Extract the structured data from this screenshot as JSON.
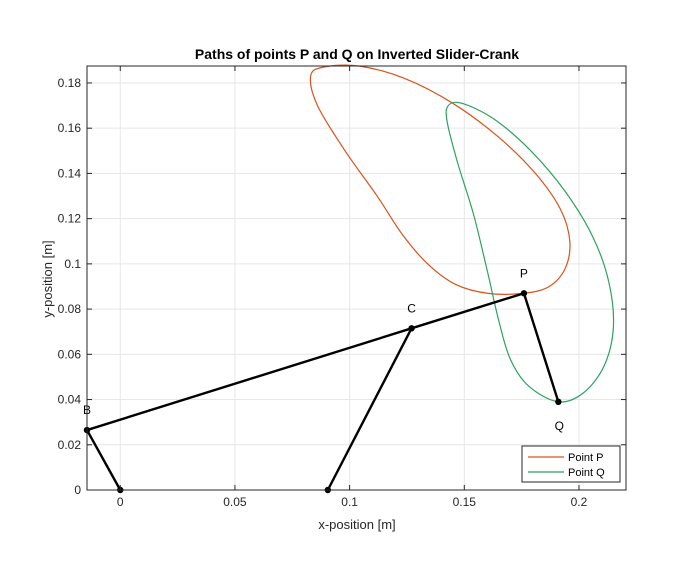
{
  "chart_data": {
    "type": "line",
    "title": "Paths of points P and Q on Inverted Slider-Crank",
    "xlabel": "x-position [m]",
    "ylabel": "y-position [m]",
    "xlim": [
      -0.0145,
      0.2205
    ],
    "ylim": [
      0,
      0.1875
    ],
    "xticks": [
      0,
      0.05,
      0.1,
      0.15,
      0.2
    ],
    "xtick_labels": [
      "0",
      "0.05",
      "0.1",
      "0.15",
      "0.2"
    ],
    "yticks": [
      0,
      0.02,
      0.04,
      0.06,
      0.08,
      0.1,
      0.12,
      0.14,
      0.16,
      0.18
    ],
    "ytick_labels": [
      "0",
      "0.02",
      "0.04",
      "0.06",
      "0.08",
      "0.1",
      "0.12",
      "0.14",
      "0.16",
      "0.18"
    ],
    "grid": true,
    "legend_position": "bottom-right",
    "series": [
      {
        "name": "Point P",
        "color": "#d95319",
        "closed": true,
        "points": [
          [
            0.176,
            0.087
          ],
          [
            0.187,
            0.09
          ],
          [
            0.194,
            0.098
          ],
          [
            0.196,
            0.11
          ],
          [
            0.192,
            0.124
          ],
          [
            0.181,
            0.14
          ],
          [
            0.165,
            0.156
          ],
          [
            0.145,
            0.171
          ],
          [
            0.124,
            0.182
          ],
          [
            0.104,
            0.1875
          ],
          [
            0.0885,
            0.187
          ],
          [
            0.083,
            0.183
          ],
          [
            0.086,
            0.17
          ],
          [
            0.098,
            0.15
          ],
          [
            0.112,
            0.13
          ],
          [
            0.123,
            0.113
          ],
          [
            0.134,
            0.1
          ],
          [
            0.146,
            0.091
          ],
          [
            0.16,
            0.087
          ]
        ]
      },
      {
        "name": "Point Q",
        "color": "#2ca25f",
        "closed": true,
        "points": [
          [
            0.191,
            0.039
          ],
          [
            0.202,
            0.043
          ],
          [
            0.211,
            0.055
          ],
          [
            0.215,
            0.072
          ],
          [
            0.213,
            0.092
          ],
          [
            0.206,
            0.112
          ],
          [
            0.194,
            0.132
          ],
          [
            0.179,
            0.15
          ],
          [
            0.163,
            0.164
          ],
          [
            0.149,
            0.171
          ],
          [
            0.143,
            0.17
          ],
          [
            0.1425,
            0.163
          ],
          [
            0.147,
            0.145
          ],
          [
            0.154,
            0.122
          ],
          [
            0.16,
            0.097
          ],
          [
            0.165,
            0.075
          ],
          [
            0.17,
            0.058
          ],
          [
            0.178,
            0.046
          ]
        ]
      }
    ],
    "linkage": {
      "color": "#000000",
      "segments": [
        [
          [
            0,
            0
          ],
          [
            -0.0145,
            0.0265
          ]
        ],
        [
          [
            -0.0145,
            0.0265
          ],
          [
            0.127,
            0.0715
          ]
        ],
        [
          [
            0.127,
            0.0715
          ],
          [
            0.176,
            0.087
          ]
        ],
        [
          [
            0.176,
            0.087
          ],
          [
            0.191,
            0.039
          ]
        ],
        [
          [
            0.0905,
            0
          ],
          [
            0.127,
            0.0715
          ]
        ]
      ],
      "joints": [
        {
          "x": 0,
          "y": 0
        },
        {
          "x": -0.0145,
          "y": 0.0265,
          "label": "B"
        },
        {
          "x": 0.127,
          "y": 0.0715,
          "label": "C"
        },
        {
          "x": 0.176,
          "y": 0.087,
          "label": "P"
        },
        {
          "x": 0.191,
          "y": 0.039,
          "label": "Q"
        },
        {
          "x": 0.0905,
          "y": 0
        }
      ]
    }
  }
}
